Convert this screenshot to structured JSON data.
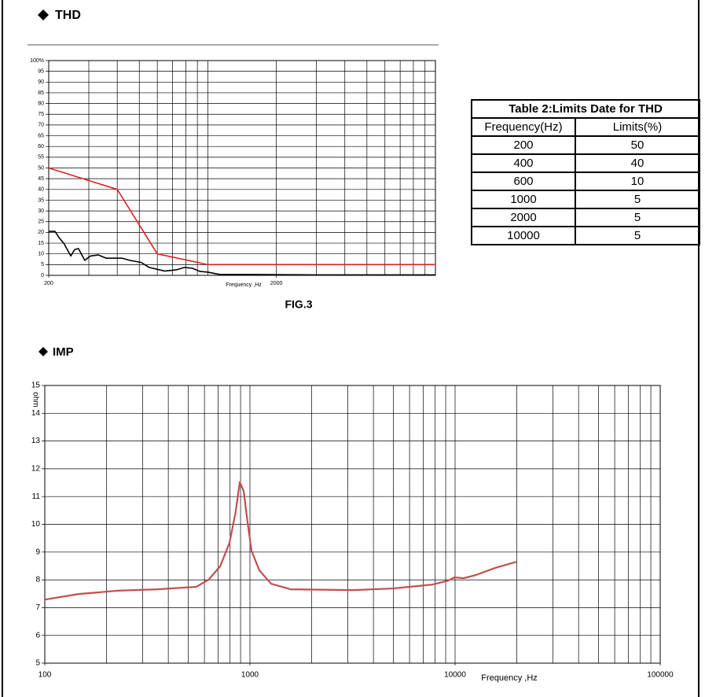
{
  "headings": {
    "thd": "THD",
    "imp": "IMP"
  },
  "figure_caption": "FIG.3",
  "table": {
    "title": "Table 2:Limits Date for THD",
    "header": [
      "Frequency(Hz)",
      "Limits(%)"
    ],
    "rows": [
      [
        200,
        50
      ],
      [
        400,
        40
      ],
      [
        600,
        10
      ],
      [
        1000,
        5
      ],
      [
        2000,
        5
      ],
      [
        10000,
        5
      ]
    ]
  },
  "chart_data": [
    {
      "type": "line",
      "x_label": "Frequency ,Hz",
      "xscale": "log",
      "xlim": [
        200,
        10000
      ],
      "ylim": [
        0,
        100
      ],
      "xticks": [
        200,
        2000
      ],
      "minor_xticks": [
        300,
        400,
        500,
        600,
        700,
        800,
        900,
        1000,
        3000,
        4000,
        5000,
        6000,
        7000,
        8000,
        9000,
        10000
      ],
      "yticks": [
        0,
        5,
        10,
        15,
        20,
        25,
        30,
        35,
        40,
        45,
        50,
        55,
        60,
        65,
        70,
        75,
        80,
        85,
        90,
        95,
        {
          "value": 100,
          "label": "100%"
        }
      ],
      "grid": true,
      "series": [
        {
          "color": "#000000",
          "x": [
            200,
            213,
            222,
            234,
            250,
            260,
            270,
            288,
            305,
            330,
            357,
            387,
            419,
            453,
            510,
            552,
            647,
            730,
            791,
            855,
            926,
            1000,
            1130,
            1550,
            2930,
            10000
          ],
          "values": [
            20.5,
            20.5,
            17.6,
            14.6,
            9,
            12,
            12.5,
            7,
            9,
            9.5,
            8,
            8,
            8,
            7,
            6,
            3.7,
            2,
            2.6,
            3.7,
            3.3,
            1.8,
            1.5,
            0.4,
            0.4,
            0.2,
            0.2
          ]
        },
        {
          "color": "#e02020",
          "x": [
            200,
            400,
            600,
            1000,
            2000,
            10000
          ],
          "values": [
            50,
            40,
            10,
            5,
            5,
            5
          ]
        }
      ]
    },
    {
      "type": "line",
      "x_label": "Frequency ,Hz",
      "y_label": "ohm",
      "xscale": "log",
      "xlim": [
        100,
        100000
      ],
      "ylim": [
        5,
        15
      ],
      "xticks": [
        100,
        1000,
        10000,
        100000
      ],
      "minor_xticks": [
        200,
        300,
        400,
        500,
        600,
        700,
        800,
        900,
        2000,
        3000,
        4000,
        5000,
        6000,
        7000,
        8000,
        9000,
        20000,
        30000,
        40000,
        50000,
        60000,
        70000,
        80000,
        90000
      ],
      "yticks": [
        5,
        6,
        7,
        8,
        9,
        10,
        11,
        12,
        13,
        14,
        15
      ],
      "grid": true,
      "series": [
        {
          "color": "#c0504d",
          "x": [
            100,
            146,
            227,
            353,
            548,
            627,
            715,
            795,
            853,
            892,
            932,
            975,
            1018,
            1112,
            1269,
            1581,
            3208,
            4977,
            7745,
            9245,
            9909,
            11020,
            12590,
            15680,
            19900
          ],
          "values": [
            7.29,
            7.49,
            7.61,
            7.66,
            7.75,
            8.0,
            8.48,
            9.33,
            10.47,
            11.52,
            11.2,
            10.04,
            9.05,
            8.34,
            7.86,
            7.66,
            7.63,
            7.69,
            7.83,
            7.97,
            8.09,
            8.06,
            8.17,
            8.43,
            8.65
          ]
        }
      ]
    }
  ]
}
